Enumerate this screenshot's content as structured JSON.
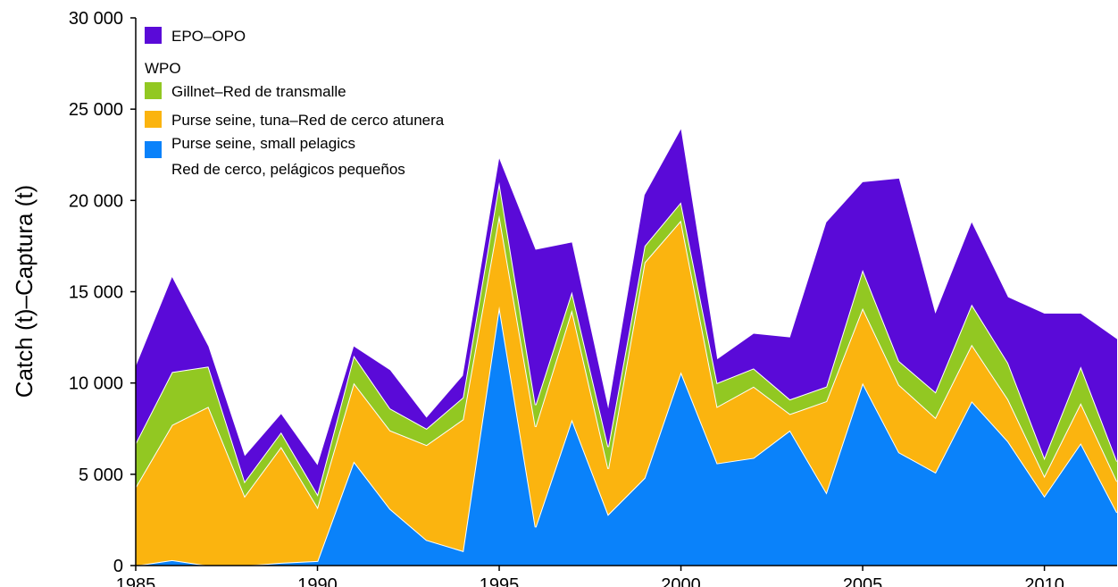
{
  "chart_data": {
    "type": "stacked_area",
    "y_label": "Catch (t)–Captura (t)",
    "x": [
      1985,
      1986,
      1987,
      1988,
      1989,
      1990,
      1991,
      1992,
      1993,
      1994,
      1995,
      1996,
      1997,
      1998,
      1999,
      2000,
      2001,
      2002,
      2003,
      2004,
      2005,
      2006,
      2007,
      2008,
      2009,
      2010,
      2011,
      2012
    ],
    "xlim": [
      1985,
      2012
    ],
    "xticks": [
      1985,
      1990,
      1995,
      2000,
      2005,
      2010
    ],
    "ylim": [
      0,
      30000
    ],
    "yticks": [
      0,
      {
        "value": 5000,
        "label": "5 000"
      },
      {
        "value": 10000,
        "label": "10 000"
      },
      {
        "value": 15000,
        "label": "15 000"
      },
      {
        "value": 20000,
        "label": "20 000"
      },
      {
        "value": 25000,
        "label": "25 000"
      },
      {
        "value": 30000,
        "label": "30 000"
      }
    ],
    "legend_group": "WPO",
    "series": [
      {
        "name": "EPO–OPO",
        "color": "#5a0ad8",
        "values": [
          4200,
          5200,
          1100,
          1400,
          1000,
          1600,
          500,
          2100,
          600,
          1200,
          1300,
          8500,
          2700,
          2100,
          2800,
          4000,
          1300,
          1900,
          3400,
          9000,
          4800,
          10000,
          4300,
          4500,
          3600,
          7900,
          2900,
          6700
        ]
      },
      {
        "name": "Gillnet–Red de transmalle",
        "color": "#92c822",
        "values": [
          2400,
          2900,
          2200,
          800,
          800,
          700,
          1500,
          1200,
          900,
          1200,
          1800,
          1200,
          1000,
          1200,
          900,
          1000,
          1300,
          1000,
          800,
          800,
          2100,
          1300,
          1400,
          2200,
          2000,
          1000,
          2000,
          1100
        ]
      },
      {
        "name": "Purse seine, tuna–Red de cerco atunera",
        "color": "#fbb40f",
        "values": [
          4300,
          7400,
          8700,
          3800,
          6350,
          2950,
          4300,
          4300,
          5200,
          7200,
          5000,
          5500,
          6000,
          2500,
          11800,
          8300,
          3100,
          3900,
          900,
          5000,
          4100,
          3700,
          3000,
          3100,
          2300,
          1100,
          2200,
          1700
        ]
      },
      {
        "name": "Purse seine, small pelagics\nRed de cerco, pelágicos pequeños",
        "color": "#0a82fa",
        "values": [
          0,
          300,
          0,
          0,
          150,
          250,
          5700,
          3100,
          1400,
          800,
          14200,
          2100,
          8000,
          2800,
          4800,
          10600,
          5600,
          5900,
          7400,
          4000,
          10000,
          6200,
          5100,
          9000,
          6800,
          3800,
          6700,
          2900
        ]
      }
    ]
  }
}
